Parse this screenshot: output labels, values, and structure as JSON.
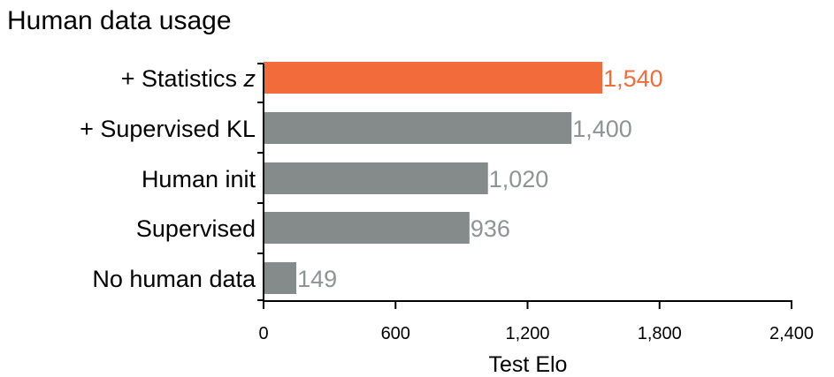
{
  "chart_data": {
    "type": "bar",
    "orientation": "horizontal",
    "title": "Human data usage",
    "xlabel": "Test Elo",
    "ylabel": "",
    "categories": [
      "+ Statistics z",
      "+ Supervised KL",
      "Human init",
      "Supervised",
      "No human data"
    ],
    "category_parts": [
      {
        "text": "+ Statistics ",
        "italic": "z"
      },
      {
        "text": "+ Supervised KL",
        "italic": ""
      },
      {
        "text": "Human init",
        "italic": ""
      },
      {
        "text": "Supervised",
        "italic": ""
      },
      {
        "text": "No human data",
        "italic": ""
      }
    ],
    "values": [
      1540,
      1400,
      1020,
      936,
      149
    ],
    "value_labels": [
      "1,540",
      "1,400",
      "1,020",
      "936",
      "149"
    ],
    "xlim": [
      0,
      2400
    ],
    "xticks": [
      0,
      600,
      1200,
      1800,
      2400
    ],
    "xtick_labels": [
      "0",
      "600",
      "1,200",
      "1,800",
      "2,400"
    ],
    "grid": false,
    "colors": {
      "highlight_bar": "#f26b3a",
      "bar": "#858b8b",
      "highlight_label": "#f26b3a",
      "label": "#8e9393"
    },
    "highlight_index": 0
  }
}
